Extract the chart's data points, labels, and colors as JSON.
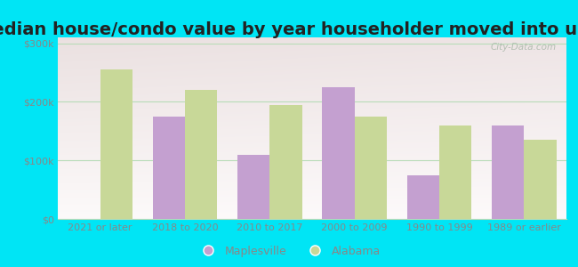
{
  "title": "Median house/condo value by year householder moved into unit",
  "categories": [
    "2021 or later",
    "2018 to 2020",
    "2010 to 2017",
    "2000 to 2009",
    "1990 to 1999",
    "1989 or earlier"
  ],
  "maplesville": [
    null,
    175000,
    110000,
    225000,
    75000,
    160000
  ],
  "alabama": [
    255000,
    220000,
    195000,
    175000,
    160000,
    135000
  ],
  "maplesville_color": "#c4a0d0",
  "alabama_color": "#c8d898",
  "background_outer": "#00e5f5",
  "ylim": [
    0,
    310000
  ],
  "yticks": [
    0,
    100000,
    200000,
    300000
  ],
  "ytick_labels": [
    "$0",
    "$100k",
    "$200k",
    "$300k"
  ],
  "legend_maplesville": "Maplesville",
  "legend_alabama": "Alabama",
  "bar_width": 0.38,
  "watermark": "City-Data.com",
  "title_fontsize": 14,
  "tick_fontsize": 8,
  "legend_fontsize": 9,
  "grid_color": "#b8dcb8",
  "tick_color": "#888888",
  "title_color": "#222222"
}
